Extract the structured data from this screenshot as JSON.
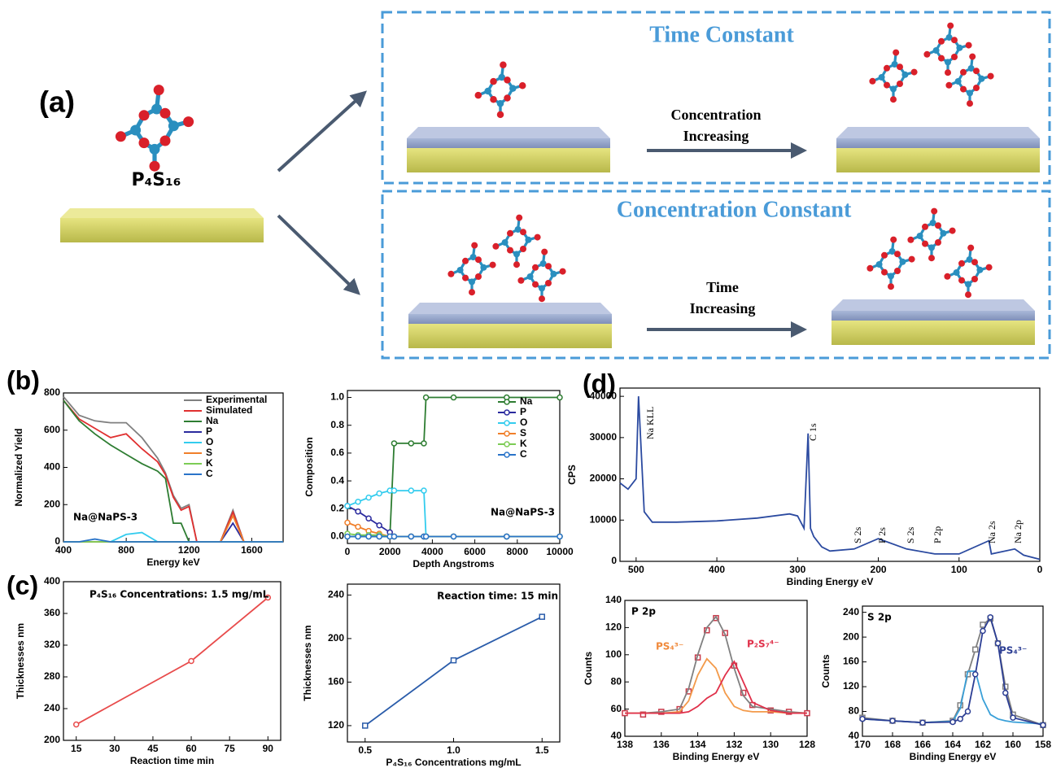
{
  "panel_labels": [
    "(a)",
    "(b)",
    "(c)",
    "(d)"
  ],
  "panel_a": {
    "molecule": "P₄S₁₆",
    "top_box_title": "Time Constant",
    "top_arrow_label": [
      "Concentration",
      "Increasing"
    ],
    "bottom_box_title": "Concentration Constant",
    "bottom_arrow_label": [
      "Time",
      "Increasing"
    ]
  },
  "chart_data": [
    {
      "type": "line",
      "xlabel": "Energy keV",
      "ylabel": "Normalized Yield",
      "annotations": [
        "Na@NaPS-3"
      ],
      "legend": "upper right",
      "xlim": [
        400,
        1800
      ],
      "xticks": [
        400,
        800,
        1200,
        1600
      ],
      "ylim": [
        0,
        800
      ],
      "yticks": [
        0,
        200,
        400,
        600,
        800
      ],
      "x": [
        400,
        500,
        600,
        700,
        800,
        900,
        1000,
        1050,
        1100,
        1150,
        1200,
        1250,
        1300,
        1400,
        1480,
        1550,
        1800
      ],
      "series": [
        {
          "name": "Experimental",
          "color": "#808080",
          "values": [
            780,
            680,
            650,
            640,
            640,
            560,
            450,
            370,
            250,
            180,
            200,
            0,
            0,
            0,
            170,
            0,
            0
          ]
        },
        {
          "name": "Simulated",
          "color": "#e03030",
          "values": [
            760,
            660,
            610,
            560,
            580,
            500,
            430,
            360,
            240,
            170,
            190,
            0,
            0,
            0,
            160,
            0,
            0
          ]
        },
        {
          "name": "Na",
          "color": "#2e7d32",
          "values": [
            760,
            650,
            580,
            520,
            470,
            420,
            380,
            340,
            100,
            100,
            0,
            0,
            0,
            0,
            0,
            0,
            0
          ]
        },
        {
          "name": "P",
          "color": "#2b2b9e",
          "values": [
            0,
            0,
            0,
            0,
            0,
            0,
            0,
            0,
            0,
            0,
            0,
            0,
            0,
            0,
            100,
            0,
            0
          ]
        },
        {
          "name": "O",
          "color": "#33ccee",
          "values": [
            0,
            0,
            0,
            0,
            40,
            50,
            0,
            0,
            0,
            0,
            0,
            0,
            0,
            0,
            0,
            0,
            0
          ]
        },
        {
          "name": "S",
          "color": "#f07f2a",
          "values": [
            0,
            0,
            0,
            0,
            0,
            0,
            0,
            0,
            0,
            0,
            0,
            0,
            0,
            0,
            140,
            0,
            0
          ]
        },
        {
          "name": "K",
          "color": "#7ccc55",
          "values": [
            0,
            0,
            0,
            0,
            0,
            0,
            0,
            0,
            0,
            0,
            0,
            0,
            0,
            0,
            0,
            0,
            0
          ]
        },
        {
          "name": "C",
          "color": "#2a74c9",
          "values": [
            0,
            0,
            15,
            0,
            0,
            0,
            0,
            0,
            0,
            0,
            0,
            0,
            0,
            0,
            0,
            0,
            0
          ]
        }
      ]
    },
    {
      "type": "line",
      "xlabel": "Depth Angstroms",
      "ylabel": "Composition",
      "annotations": [
        "Na@NaPS-3"
      ],
      "legend": "upper right",
      "xlim": [
        0,
        10000
      ],
      "xticks": [
        0,
        2000,
        4000,
        6000,
        8000,
        10000
      ],
      "ylim": [
        -0.05,
        1.05
      ],
      "yticks": [
        {
          "value": 0,
          "label": "0.0"
        },
        0.2,
        0.4,
        0.6,
        0.8,
        {
          "value": 1,
          "label": "1.0"
        }
      ],
      "x": [
        0,
        500,
        1000,
        1500,
        2000,
        2200,
        3000,
        3600,
        3700,
        5000,
        7500,
        10000
      ],
      "series": [
        {
          "name": "Na",
          "color": "#2e7d32",
          "marker": "circle",
          "values": [
            0,
            0,
            0,
            0,
            0,
            0.67,
            0.67,
            0.67,
            1,
            1,
            1,
            1
          ]
        },
        {
          "name": "P",
          "color": "#2b2b9e",
          "marker": "circle",
          "values": [
            0.22,
            0.18,
            0.13,
            0.08,
            0.03,
            0,
            0,
            0,
            0,
            0,
            0,
            0
          ]
        },
        {
          "name": "O",
          "color": "#33ccee",
          "marker": "circle",
          "values": [
            0.22,
            0.25,
            0.28,
            0.31,
            0.33,
            0.33,
            0.33,
            0.33,
            0,
            0,
            0,
            0
          ]
        },
        {
          "name": "S",
          "color": "#f07f2a",
          "marker": "circle",
          "values": [
            0.1,
            0.07,
            0.04,
            0.02,
            0,
            0,
            0,
            0,
            0,
            0,
            0,
            0
          ]
        },
        {
          "name": "K",
          "color": "#7ccc55",
          "marker": "circle",
          "values": [
            0.02,
            0.01,
            0.01,
            0.01,
            0,
            0,
            0,
            0,
            0,
            0,
            0,
            0
          ]
        },
        {
          "name": "C",
          "color": "#2a74c9",
          "marker": "circle",
          "values": [
            0,
            0,
            0,
            0,
            0,
            0,
            0,
            0,
            0,
            0,
            0,
            0
          ]
        }
      ]
    },
    {
      "type": "line",
      "xlabel": "Reaction time min",
      "ylabel": "Thicknesses nm",
      "annotations": [
        "P₄S₁₆ Concentrations: 1.5 mg/mL"
      ],
      "xlim": [
        10,
        95
      ],
      "xticks": [
        15,
        30,
        45,
        60,
        75,
        90
      ],
      "ylim": [
        200,
        400
      ],
      "yticks": [
        200,
        240,
        280,
        320,
        360,
        400
      ],
      "x": [
        15,
        60,
        90
      ],
      "series": [
        {
          "color": "#e84b4b",
          "marker": "circle",
          "values": [
            220,
            300,
            380
          ]
        }
      ]
    },
    {
      "type": "line",
      "xlabel": "P₄S₁₆ Concentrations mg/mL",
      "ylabel": "Thicknesses nm",
      "annotations": [
        "Reaction time: 15 min"
      ],
      "xlim": [
        0.4,
        1.6
      ],
      "xticks": [
        0.5,
        {
          "value": 1,
          "label": "1.0"
        },
        1.5
      ],
      "ylim": [
        105,
        250
      ],
      "yticks": [
        120,
        160,
        200,
        240
      ],
      "x": [
        0.5,
        1,
        1.5
      ],
      "series": [
        {
          "color": "#2a5caa",
          "marker": "square",
          "values": [
            120,
            180,
            220
          ]
        }
      ]
    },
    {
      "type": "line",
      "xlabel": "Binding Energy eV",
      "ylabel": "CPS",
      "annotations": [
        "Na KLL",
        "C 1s",
        "S 2s",
        "P 2s",
        "S 2s",
        "P 2p",
        "Na 2s",
        "Na 2p"
      ],
      "xlim": [
        520,
        0
      ],
      "xticks": [
        500,
        400,
        300,
        200,
        100,
        0
      ],
      "ylim": [
        0,
        42000
      ],
      "yticks": [
        0,
        10000,
        20000,
        30000,
        40000
      ],
      "x": [
        520,
        510,
        500,
        497,
        490,
        480,
        450,
        400,
        350,
        310,
        300,
        292,
        287,
        284,
        280,
        270,
        260,
        230,
        200,
        165,
        130,
        100,
        63,
        60,
        31,
        20,
        0
      ],
      "series": [
        {
          "color": "#2b4aa0",
          "values": [
            19000,
            17500,
            20000,
            40000,
            12000,
            9500,
            9500,
            9800,
            10500,
            11500,
            11000,
            8000,
            31000,
            8000,
            6000,
            3500,
            2500,
            3000,
            5500,
            3000,
            1800,
            1800,
            5000,
            1800,
            3000,
            1500,
            500
          ]
        }
      ]
    },
    {
      "type": "line",
      "xlabel": "Binding Energy eV",
      "ylabel": "Counts",
      "annotations": [
        "P 2p",
        "PS₄³⁻",
        "P₂S₇⁴⁻"
      ],
      "xlim": [
        138,
        128
      ],
      "xticks": [
        138,
        136,
        134,
        132,
        130,
        128
      ],
      "ylim": [
        40,
        140
      ],
      "yticks": [
        40,
        60,
        80,
        100,
        120,
        140
      ],
      "x": [
        138,
        137,
        136,
        135,
        134.5,
        134,
        133.5,
        133,
        132.5,
        132,
        131.5,
        131,
        130,
        129,
        128
      ],
      "series": [
        {
          "color": "#c83a4a",
          "marker": "square",
          "line": false,
          "values": [
            57,
            56,
            58,
            60,
            73,
            98,
            118,
            127,
            116,
            92,
            72,
            63,
            59,
            58,
            57
          ]
        },
        {
          "color": "#808080",
          "values": [
            57,
            57,
            58,
            60,
            75,
            100,
            120,
            128,
            115,
            90,
            70,
            62,
            60,
            58,
            57
          ]
        },
        {
          "color": "#f39a4a",
          "values": [
            57,
            57,
            57,
            58,
            66,
            85,
            97,
            90,
            72,
            62,
            59,
            58,
            58,
            57,
            57
          ]
        },
        {
          "color": "#e0304a",
          "values": [
            57,
            57,
            57,
            57,
            58,
            62,
            68,
            72,
            85,
            95,
            80,
            65,
            59,
            57,
            57
          ]
        }
      ]
    },
    {
      "type": "line",
      "xlabel": "Binding Energy eV",
      "ylabel": "Counts",
      "annotations": [
        "S 2p",
        "PS₄³⁻"
      ],
      "xlim": [
        170,
        158
      ],
      "xticks": [
        170,
        168,
        166,
        164,
        162,
        160,
        158
      ],
      "ylim": [
        40,
        250
      ],
      "yticks": [
        40,
        80,
        120,
        160,
        200,
        240
      ],
      "x": [
        170,
        168,
        166,
        164,
        163.5,
        163,
        162.5,
        162,
        161.5,
        161,
        160.5,
        160,
        158
      ],
      "series": [
        {
          "color": "#808080",
          "marker": "square",
          "values": [
            70,
            65,
            62,
            65,
            90,
            140,
            180,
            220,
            230,
            190,
            120,
            75,
            58
          ]
        },
        {
          "color": "#3aa0d8",
          "values": [
            68,
            65,
            62,
            64,
            85,
            145,
            145,
            100,
            75,
            68,
            65,
            63,
            60
          ]
        },
        {
          "color": "#2c3e94",
          "marker": "circle",
          "values": [
            68,
            65,
            62,
            63,
            68,
            80,
            140,
            210,
            232,
            190,
            110,
            70,
            58
          ]
        }
      ]
    }
  ]
}
